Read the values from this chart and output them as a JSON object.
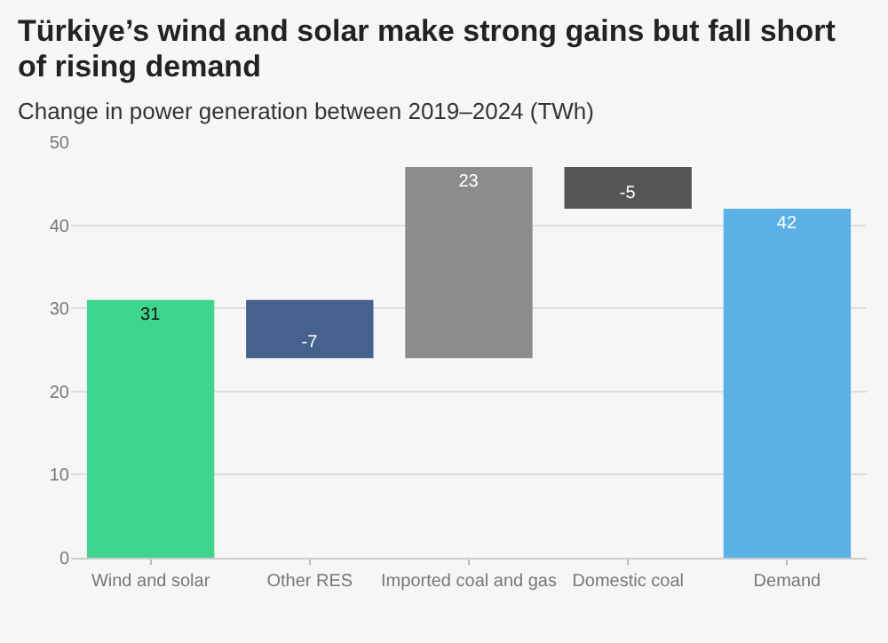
{
  "chart_data": {
    "type": "bar",
    "title": "Türkiye’s wind and solar make strong gains but fall short of rising demand",
    "subtitle": "Change in power generation between 2019–2024 (TWh)",
    "categories": [
      "Wind and solar",
      "Other RES",
      "Imported coal and gas",
      "Domestic coal",
      "Demand"
    ],
    "values": [
      31,
      -7,
      23,
      -5,
      42
    ],
    "base": [
      0,
      31,
      24,
      47,
      0
    ],
    "colors": [
      "#3dd68c",
      "#46618e",
      "#8c8c8c",
      "#555555",
      "#5ab1e6"
    ],
    "data_labels": true,
    "ylim": [
      0,
      50
    ],
    "yticks": [
      0,
      10,
      20,
      30,
      40,
      50
    ],
    "grid": "y"
  }
}
